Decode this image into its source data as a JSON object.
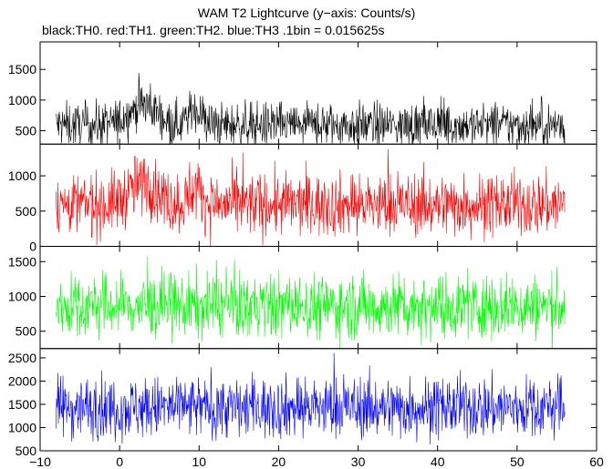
{
  "chart_data": {
    "type": "line",
    "title": "WAM T2 Lightcurve (y−axis: Counts/s)",
    "subtitle": "black:TH0. red:TH1. green:TH2. blue:TH3 .1bin = 0.015625s",
    "xlim": [
      -10,
      60
    ],
    "x_ticks": [
      -10,
      0,
      10,
      20,
      30,
      40,
      50,
      60
    ],
    "x_tick_labels": [
      "−10",
      "0",
      "10",
      "20",
      "30",
      "40",
      "50",
      "60"
    ],
    "x_range_data": [
      -8,
      56
    ],
    "grid": false,
    "panels": [
      {
        "name": "TH0",
        "color": "#000000",
        "ylim": [
          280,
          1950
        ],
        "y_ticks": [
          500,
          1000,
          1500
        ],
        "baseline": 590,
        "noise": 180,
        "bumps": [
          {
            "center": 3.0,
            "width": 2.5,
            "height": 340
          },
          {
            "center": 9.5,
            "width": 1.2,
            "height": 250
          }
        ],
        "max_value": 1950
      },
      {
        "name": "TH1",
        "color": "#ff0000",
        "ylim": [
          0,
          1450
        ],
        "y_ticks": [
          0,
          500,
          1000
        ],
        "baseline": 590,
        "noise": 220,
        "bumps": [
          {
            "center": 3.0,
            "width": 2.5,
            "height": 300
          },
          {
            "center": 9.5,
            "width": 1.2,
            "height": 230
          }
        ],
        "max_value": 1450
      },
      {
        "name": "TH2",
        "color": "#00ff00",
        "ylim": [
          250,
          1720
        ],
        "y_ticks": [
          500,
          1000,
          1500
        ],
        "baseline": 860,
        "noise": 230,
        "bumps": [],
        "max_value": 1720
      },
      {
        "name": "TH3",
        "color": "#0000ff",
        "ylim": [
          500,
          2700
        ],
        "y_ticks": [
          500,
          1000,
          1500,
          2000,
          2500
        ],
        "baseline": 1430,
        "noise": 330,
        "bumps": [],
        "max_value": 2700
      }
    ]
  }
}
